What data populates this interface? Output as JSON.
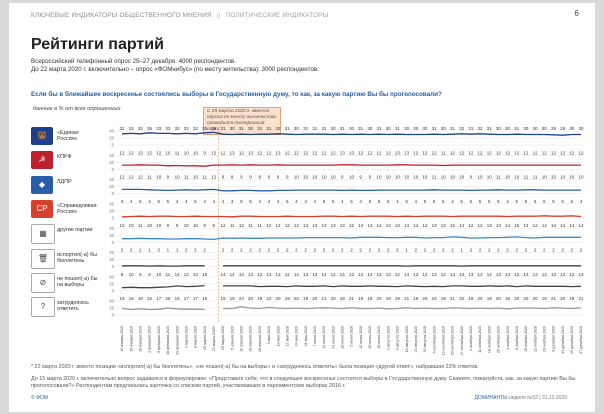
{
  "header": {
    "section": "КЛЮЧЕВЫЕ ИНДИКАТОРЫ ОБЩЕСТВЕННОГО МНЕНИЯ",
    "separator": "||",
    "subsection": "Политические индикаторы",
    "page_number": "6"
  },
  "title": "Рейтинги партий",
  "method_note_1": "Всероссийский телефонный опрос 25–27 декабря. 4000 респондентов.",
  "method_note_2": "До 22 марта 2020 г. включительно – опрос «ФОМнибус» (по месту жительства): 3000 респондентов.",
  "question": "Если бы в ближайшее воскресенье состоялись выборы в Государственную думу, то как, за какую партию Вы бы проголосовали?",
  "units_note": "данные в % от всех опрошенных",
  "callout": "С 29 марта 2020 г. вместо опроса по месту жительства проводился телефонный опрос",
  "footnote_1": "* 22 марта 2020 г. вместо позиции «испортил(-а) бы бюллетень», «не пошел(-а) бы на выборы» и «затрудняюсь ответить» была позиция «другой ответ», набравшая 23% ответов.",
  "footnote_2a": "До 15 марта 2020 г. включительно вопрос задавался в формулировке: «Представьте себе, что в следующее воскресенье состоятся выборы в Государственную думу. Скажите, пожалуйста, как, за какую партию Вы бы",
  "footnote_2b": "проголосовали?» Респондентам предлагалась карточка со списком партий, участвовавших в парламентских выборах 2016 г.",
  "page_footer": {
    "left": "© ФОМ",
    "brand": "ДОМИНАНТЫ",
    "issue": "неделя №52 | 31.12.2020"
  },
  "colors": {
    "page_bg": "#ffffff",
    "accent_blue": "#2a5d9f",
    "er": "#1f3f8f",
    "kprf": "#c0202c",
    "ldpr": "#2a5caa",
    "sr": "#d8402e",
    "other": "#3a88c8",
    "spoil": "#444444",
    "abstain": "#444444",
    "undecided": "#999999",
    "callout_bg": "#fbe1cd",
    "divider": "#e0a07a"
  },
  "chart_data": {
    "type": "line",
    "x": [
      "12 января 2020",
      "19 января 2020",
      "26 января 2020",
      "2 февраля 2020",
      "9 февраля 2020",
      "16 февраля 2020",
      "23 февраля 2020",
      "1 марта 2020",
      "8 марта 2020",
      "15 марта 2020",
      "22 марта 2020*",
      "29 марта 2020",
      "5 апреля 2020",
      "12 апреля 2020",
      "19 апреля 2020",
      "26 апреля 2020",
      "3 мая 2020",
      "10 мая 2020",
      "17 мая 2020",
      "24 мая 2020",
      "31 мая 2020",
      "7 июня 2020",
      "14 июня 2020",
      "21 июня 2020",
      "28 июня 2020",
      "5 июля 2020",
      "12 июля 2020",
      "19 июля 2020",
      "26 июля 2020",
      "2 августа 2020",
      "9 августа 2020",
      "16 августа 2020",
      "23 августа 2020",
      "30 августа 2020",
      "6 сентября 2020",
      "13 сентября 2020",
      "20 сентября 2020",
      "27 сентября 2020",
      "4 октября 2020",
      "11 октября 2020",
      "18 октября 2020",
      "25 октября 2020",
      "1 ноября 2020",
      "8 ноября 2020",
      "15 ноября 2020",
      "22 ноября 2020",
      "29 ноября 2020",
      "6 декабря 2020",
      "13 декабря 2020",
      "20 декабря 2020",
      "27 декабря 2020"
    ],
    "axis_ticks": [
      40,
      20,
      0
    ],
    "break_after_index": 10,
    "series": [
      {
        "name": "«Единая Россия»",
        "label_lines": [
          "«Единая",
          "Россия»"
        ],
        "color": "#1f3f8f",
        "logo": "er",
        "values": [
          32,
          33,
          32,
          35,
          33,
          33,
          32,
          33,
          32,
          35,
          36,
          31,
          30,
          31,
          30,
          31,
          31,
          32,
          31,
          30,
          31,
          31,
          31,
          30,
          31,
          30,
          31,
          30,
          31,
          30,
          31,
          30,
          30,
          30,
          31,
          30,
          31,
          32,
          31,
          32,
          31,
          30,
          30,
          31,
          30,
          30,
          30,
          29,
          28,
          30,
          30
        ]
      },
      {
        "name": "КПРФ",
        "label_lines": [
          "КПРФ"
        ],
        "color": "#c0202c",
        "logo": "kprf",
        "values": [
          12,
          12,
          13,
          12,
          12,
          10,
          11,
          10,
          10,
          9,
          12,
          12,
          13,
          12,
          13,
          12,
          12,
          13,
          12,
          12,
          12,
          12,
          12,
          12,
          13,
          13,
          12,
          12,
          12,
          12,
          13,
          13,
          12,
          12,
          12,
          11,
          12,
          12,
          12,
          12,
          12,
          12,
          12,
          12,
          12,
          12,
          12,
          12,
          12,
          12,
          12
        ]
      },
      {
        "name": "ЛДПР",
        "label_lines": [
          "ЛДПР"
        ],
        "color": "#2a5caa",
        "logo": "ldpr",
        "values": [
          12,
          12,
          12,
          11,
          10,
          9,
          10,
          11,
          10,
          11,
          12,
          8,
          8,
          9,
          9,
          8,
          8,
          9,
          9,
          10,
          10,
          10,
          10,
          10,
          9,
          10,
          9,
          9,
          10,
          10,
          10,
          10,
          10,
          10,
          11,
          10,
          10,
          10,
          9,
          10,
          10,
          11,
          10,
          10,
          11,
          11,
          10,
          10,
          10,
          10,
          10
        ]
      },
      {
        "name": "«Справедливая Россия»",
        "label_lines": [
          "«Справедливая",
          "Россия»"
        ],
        "color": "#d8402e",
        "logo": "sr",
        "values": [
          3,
          4,
          5,
          4,
          5,
          5,
          4,
          4,
          5,
          4,
          4,
          4,
          3,
          5,
          5,
          4,
          4,
          4,
          5,
          4,
          4,
          4,
          5,
          5,
          4,
          5,
          4,
          5,
          5,
          5,
          4,
          5,
          4,
          5,
          5,
          5,
          4,
          5,
          5,
          5,
          5,
          5,
          4,
          5,
          5,
          5,
          6,
          5,
          5,
          6,
          4
        ]
      },
      {
        "name": "другие партии",
        "label_lines": [
          "другие партии"
        ],
        "color": "#3a88c8",
        "logo": "other",
        "values": [
          10,
          10,
          11,
          10,
          10,
          9,
          9,
          10,
          10,
          9,
          8,
          12,
          11,
          12,
          11,
          11,
          12,
          12,
          12,
          12,
          13,
          13,
          13,
          13,
          13,
          12,
          14,
          14,
          14,
          13,
          13,
          14,
          14,
          12,
          13,
          13,
          15,
          14,
          12,
          12,
          13,
          13,
          14,
          15,
          13,
          12,
          14,
          14,
          14,
          14,
          14
        ]
      },
      {
        "name": "испортил(-а) бы бюллетень",
        "label_lines": [
          "испортил(-а) бы",
          "бюллетень"
        ],
        "color": "#444444",
        "logo": "spoil",
        "values": [
          2,
          2,
          2,
          1,
          2,
          1,
          1,
          2,
          2,
          2,
          null,
          2,
          2,
          2,
          2,
          2,
          2,
          2,
          2,
          2,
          2,
          2,
          2,
          2,
          2,
          2,
          2,
          2,
          2,
          2,
          2,
          1,
          2,
          2,
          2,
          2,
          2,
          1,
          2,
          2,
          2,
          2,
          2,
          2,
          2,
          2,
          2,
          2,
          2,
          2,
          2
        ]
      },
      {
        "name": "не пошел(-а) бы на выборы",
        "label_lines": [
          "не пошел(-а) бы",
          "на выборы"
        ],
        "color": "#444444",
        "logo": "abstain",
        "values": [
          9,
          10,
          9,
          9,
          10,
          11,
          14,
          12,
          13,
          15,
          null,
          14,
          14,
          14,
          14,
          12,
          13,
          13,
          12,
          14,
          13,
          13,
          14,
          12,
          14,
          13,
          13,
          14,
          13,
          13,
          12,
          14,
          13,
          12,
          13,
          12,
          14,
          14,
          13,
          13,
          14,
          13,
          14,
          12,
          14,
          13,
          13,
          13,
          13,
          12,
          13
        ]
      },
      {
        "name": "затрудняюсь ответить",
        "label_lines": [
          "затрудняюсь",
          "ответить"
        ],
        "color": "#999999",
        "logo": "undecided",
        "values": [
          19,
          16,
          18,
          16,
          17,
          20,
          18,
          17,
          17,
          16,
          null,
          19,
          19,
          24,
          20,
          19,
          22,
          20,
          19,
          20,
          19,
          20,
          21,
          20,
          19,
          21,
          19,
          19,
          20,
          18,
          19,
          21,
          19,
          20,
          19,
          19,
          21,
          20,
          19,
          20,
          19,
          20,
          18,
          20,
          20,
          20,
          19,
          21,
          20,
          19,
          21
        ]
      }
    ]
  }
}
